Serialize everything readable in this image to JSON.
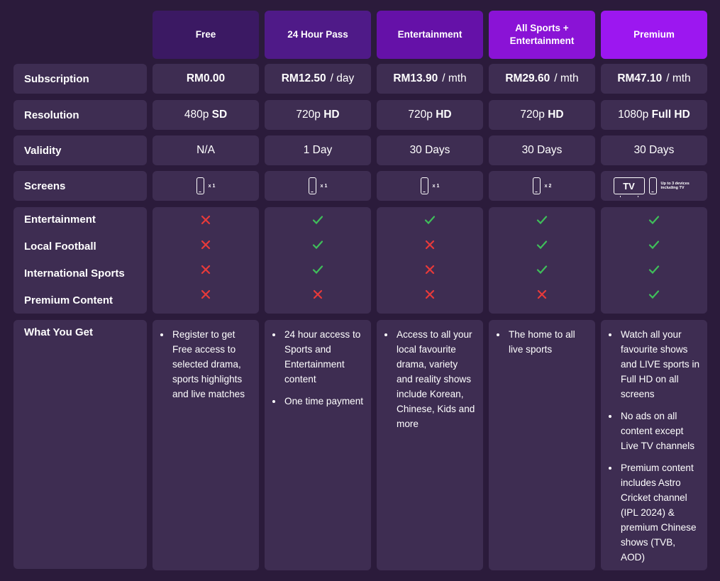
{
  "plans": [
    {
      "name": "Free",
      "color": "#3b1963"
    },
    {
      "name": "24 Hour Pass",
      "color": "#4f1a88"
    },
    {
      "name": "Entertainment",
      "color": "#6511a8"
    },
    {
      "name": "All Sports + Entertainment",
      "color": "#8a13d6"
    },
    {
      "name": "Premium",
      "color": "#9c17f0"
    }
  ],
  "rows": {
    "subscription": {
      "label": "Subscription",
      "values": [
        {
          "price": "RM0.00",
          "unit": ""
        },
        {
          "price": "RM12.50",
          "unit": "/ day"
        },
        {
          "price": "RM13.90",
          "unit": "/ mth"
        },
        {
          "price": "RM29.60",
          "unit": "/ mth"
        },
        {
          "price": "RM47.10",
          "unit": "/ mth"
        }
      ]
    },
    "resolution": {
      "label": "Resolution",
      "values": [
        {
          "num": "480p",
          "tag": "SD"
        },
        {
          "num": "720p",
          "tag": "HD"
        },
        {
          "num": "720p",
          "tag": "HD"
        },
        {
          "num": "720p",
          "tag": "HD"
        },
        {
          "num": "1080p",
          "tag": "Full HD"
        }
      ]
    },
    "validity": {
      "label": "Validity",
      "values": [
        "N/A",
        "1 Day",
        "30 Days",
        "30 Days",
        "30 Days"
      ]
    },
    "screens": {
      "label": "Screens",
      "values": [
        "x 1",
        "x 1",
        "x 1",
        "x 2"
      ],
      "premium_tv": "TV",
      "premium_note": "Up to 3 devices including TV"
    }
  },
  "features": {
    "labels": [
      "Entertainment",
      "Local Football",
      "International Sports",
      "Premium Content"
    ],
    "availability": [
      [
        false,
        false,
        false,
        false
      ],
      [
        true,
        true,
        true,
        false
      ],
      [
        true,
        false,
        false,
        false
      ],
      [
        true,
        true,
        true,
        false
      ],
      [
        true,
        true,
        true,
        true
      ]
    ],
    "colors": {
      "check": "#3fbf5a",
      "cross": "#e83a3a"
    }
  },
  "what_you_get": {
    "label": "What You Get",
    "plans": [
      [
        "Register to get Free access to selected drama, sports highlights and live matches"
      ],
      [
        "24 hour access to Sports and Entertainment content",
        "One time payment"
      ],
      [
        "Access to all your local favourite drama, variety and reality shows include Korean, Chinese, Kids and more"
      ],
      [
        "The home to all live sports"
      ],
      [
        "Watch all your favourite shows and LIVE sports in Full HD on all screens",
        "No ads on all content except Live TV channels",
        "Premium content includes Astro Cricket channel (IPL 2024) & premium Chinese shows (TVB, AOD)"
      ]
    ]
  }
}
